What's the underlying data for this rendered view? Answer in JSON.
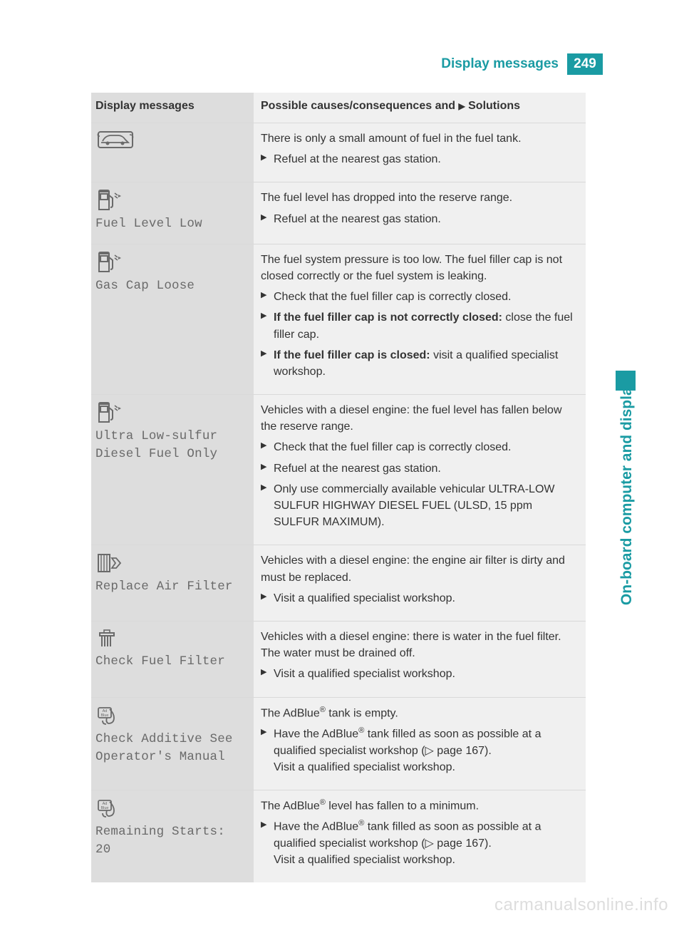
{
  "header": {
    "title": "Display messages",
    "page_number": "249"
  },
  "side_tab": {
    "label": "On-board computer and displays"
  },
  "colors": {
    "accent": "#1a9ba3",
    "left_col_bg": "#dddddd",
    "right_col_bg": "#f0f0f0",
    "text": "#333333",
    "mono_text": "#6a6a6a"
  },
  "table": {
    "headers": {
      "left": "Display messages",
      "right_prefix": "Possible causes/consequences and ",
      "right_suffix": " Solutions"
    },
    "rows": [
      {
        "icon": "car-fuel",
        "message": "",
        "cause": "There is only a small amount of fuel in the fuel tank.",
        "solutions": [
          {
            "text": "Refuel at the nearest gas station."
          }
        ]
      },
      {
        "icon": "fuel-pump",
        "message": "Fuel Level Low",
        "cause": "The fuel level has dropped into the reserve range.",
        "solutions": [
          {
            "text": "Refuel at the nearest gas station."
          }
        ]
      },
      {
        "icon": "fuel-pump",
        "message": "Gas Cap Loose",
        "cause": "The fuel system pressure is too low. The fuel filler cap is not closed correctly or the fuel system is leaking.",
        "solutions": [
          {
            "text": "Check that the fuel filler cap is correctly closed."
          },
          {
            "bold": "If the fuel filler cap is not correctly closed: ",
            "text": "close the fuel filler cap."
          },
          {
            "bold": "If the fuel filler cap is closed: ",
            "text": "visit a qualified specialist workshop."
          }
        ]
      },
      {
        "icon": "fuel-pump",
        "message": "Ultra Low-sulfur Diesel Fuel Only",
        "cause": "Vehicles with a diesel engine: the fuel level has fallen below the reserve range.",
        "solutions": [
          {
            "text": "Check that the fuel filler cap is correctly closed."
          },
          {
            "text": "Refuel at the nearest gas station."
          },
          {
            "text": "Only use commercially available vehicular ULTRA-LOW SULFUR HIGHWAY DIESEL FUEL (ULSD, 15 ppm SULFUR MAXIMUM)."
          }
        ]
      },
      {
        "icon": "air-filter",
        "message": "Replace Air Filter",
        "cause": "Vehicles with a diesel engine: the engine air filter is dirty and must be replaced.",
        "solutions": [
          {
            "text": "Visit a qualified specialist workshop."
          }
        ]
      },
      {
        "icon": "fuel-filter",
        "message": "Check Fuel Filter",
        "cause": "Vehicles with a diesel engine: there is water in the fuel filter. The water must be drained off.",
        "solutions": [
          {
            "text": "Visit a qualified specialist workshop."
          }
        ]
      },
      {
        "icon": "adblue",
        "message": "Check Additive See Operator's Manual",
        "cause_html": "The AdBlue<sup>®</sup> tank is empty.",
        "solutions": [
          {
            "html": "Have the AdBlue<sup>®</sup> tank filled as soon as possible at a qualified specialist workshop (▷ page 167).<br>Visit a qualified specialist workshop."
          }
        ]
      },
      {
        "icon": "adblue",
        "message": "Remaining Starts: 20",
        "cause_html": "The AdBlue<sup>®</sup> level has fallen to a minimum.",
        "solutions": [
          {
            "html": "Have the AdBlue<sup>®</sup> tank filled as soon as possible at a qualified specialist workshop (▷ page 167).<br>Visit a qualified specialist workshop."
          }
        ]
      }
    ]
  },
  "watermark": "carmanualsonline.info"
}
